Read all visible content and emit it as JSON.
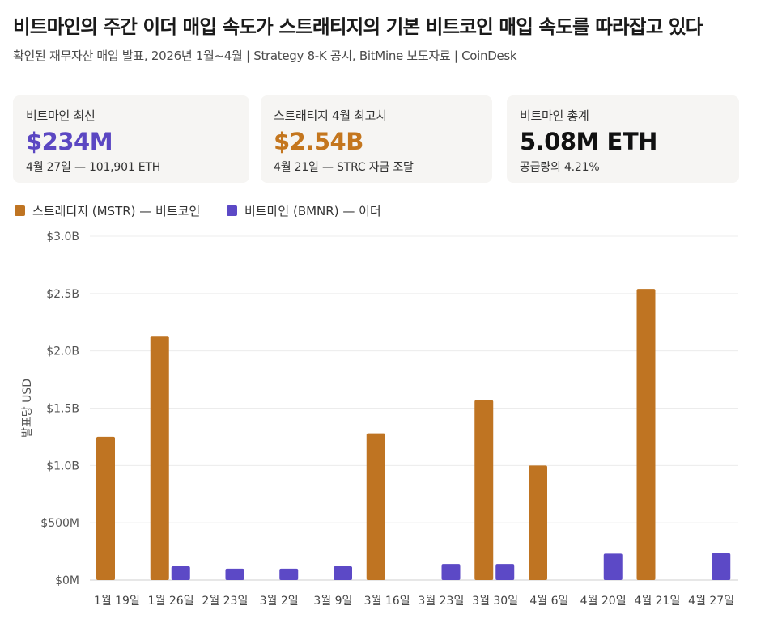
{
  "header": {
    "title": "비트마인의 주간 이더 매입 속도가 스트래티지의 기본 비트코인 매입 속도를 따라잡고 있다",
    "subtitle": "확인된 재무자산 매입 발표, 2026년 1월~4월 | Strategy 8-K 공시, BitMine 보도자료 | CoinDesk"
  },
  "cards": [
    {
      "label": "비트마인 최신",
      "value": "$234M",
      "sub": "4월 27일 — 101,901 ETH",
      "color": "#5b47c2"
    },
    {
      "label": "스트래티지 4월 최고치",
      "value": "$2.54B",
      "sub": "4월 21일 — STRC 자금 조달",
      "color": "#c4761e"
    },
    {
      "label": "비트마인 총계",
      "value": "5.08M ETH",
      "sub": "공급량의 4.21%",
      "color": "#111111"
    }
  ],
  "legend": [
    {
      "label": "스트래티지 (MSTR) — 비트코인",
      "color": "#bf7422"
    },
    {
      "label": "비트마인 (BMNR) — 이더",
      "color": "#5c49c6"
    }
  ],
  "chart_data": {
    "type": "bar",
    "categories": [
      "1월 19일",
      "1월 26일",
      "2월 23일",
      "3월 2일",
      "3월 9일",
      "3월 16일",
      "3월 23일",
      "3월 30일",
      "4월 6일",
      "4월 20일",
      "4월 21일",
      "4월 27일"
    ],
    "series": [
      {
        "name": "스트래티지 (MSTR) — 비트코인",
        "color": "#bf7422",
        "values": [
          1.25,
          2.13,
          null,
          null,
          null,
          1.28,
          null,
          1.57,
          1.0,
          null,
          2.54,
          null
        ]
      },
      {
        "name": "비트마인 (BMNR) — 이더",
        "color": "#5c49c6",
        "values": [
          null,
          0.12,
          0.1,
          0.1,
          0.12,
          null,
          0.14,
          0.14,
          null,
          0.23,
          null,
          0.234
        ]
      }
    ],
    "ylabel": "발표당 USD",
    "yticks": [
      "$0M",
      "$500M",
      "$1.0B",
      "$1.5B",
      "$2.0B",
      "$2.5B",
      "$3.0B"
    ],
    "ylim": [
      0,
      3.0
    ],
    "grid": true,
    "legend_position": "top-left"
  }
}
